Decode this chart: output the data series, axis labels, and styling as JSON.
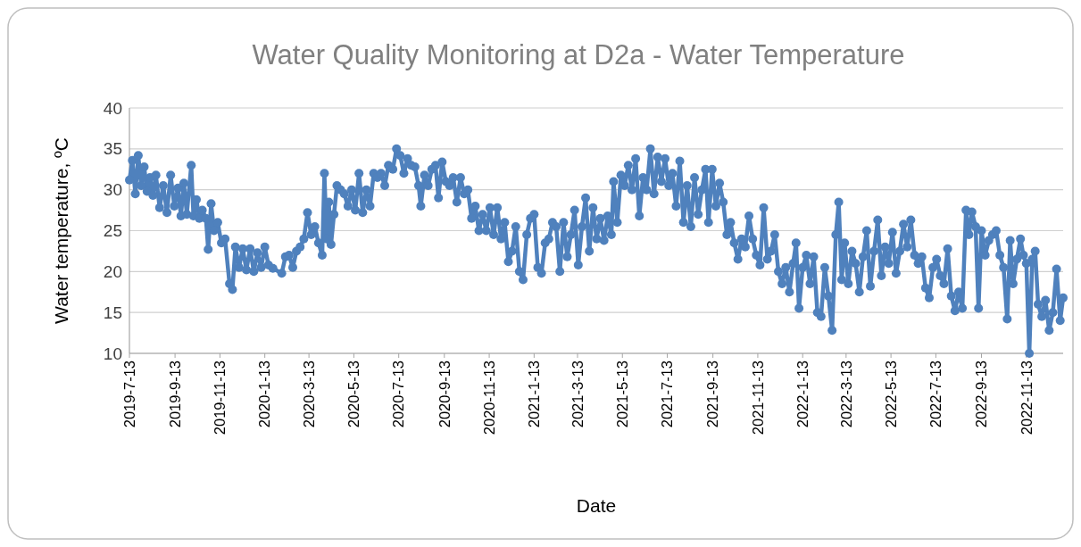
{
  "chart_data": {
    "type": "line",
    "title": "Water Quality Monitoring at D2a - Water Temperature",
    "xlabel": "Date",
    "ylabel": "Water temperature, ºC",
    "x": [
      "2019-07-13",
      "2019-07-17",
      "2019-07-21",
      "2019-07-25",
      "2019-07-29",
      "2019-08-02",
      "2019-08-06",
      "2019-08-10",
      "2019-08-14",
      "2019-08-18",
      "2019-08-23",
      "2019-08-28",
      "2019-09-02",
      "2019-09-07",
      "2019-09-12",
      "2019-09-17",
      "2019-09-21",
      "2019-09-25",
      "2019-09-29",
      "2019-10-05",
      "2019-10-08",
      "2019-10-12",
      "2019-10-16",
      "2019-10-20",
      "2019-10-25",
      "2019-10-28",
      "2019-11-01",
      "2019-11-05",
      "2019-11-10",
      "2019-11-15",
      "2019-11-20",
      "2019-11-26",
      "2019-11-30",
      "2019-12-04",
      "2019-12-09",
      "2019-12-14",
      "2019-12-19",
      "2019-12-24",
      "2019-12-29",
      "2020-01-03",
      "2020-01-08",
      "2020-01-13",
      "2020-01-18",
      "2020-01-24",
      "2020-02-05",
      "2020-02-10",
      "2020-02-15",
      "2020-02-20",
      "2020-02-25",
      "2020-03-01",
      "2020-03-06",
      "2020-03-11",
      "2020-03-16",
      "2020-03-21",
      "2020-03-26",
      "2020-03-31",
      "2020-04-03",
      "2020-04-06",
      "2020-04-09",
      "2020-04-12",
      "2020-04-16",
      "2020-04-20",
      "2020-04-25",
      "2020-04-30",
      "2020-05-05",
      "2020-05-10",
      "2020-05-15",
      "2020-05-20",
      "2020-05-25",
      "2020-05-30",
      "2020-06-04",
      "2020-06-09",
      "2020-06-14",
      "2020-06-19",
      "2020-06-24",
      "2020-06-29",
      "2020-07-05",
      "2020-07-10",
      "2020-07-15",
      "2020-07-20",
      "2020-07-25",
      "2020-07-30",
      "2020-08-04",
      "2020-08-09",
      "2020-08-12",
      "2020-08-17",
      "2020-08-22",
      "2020-08-27",
      "2020-09-01",
      "2020-09-05",
      "2020-09-10",
      "2020-09-15",
      "2020-09-20",
      "2020-09-25",
      "2020-09-30",
      "2020-10-05",
      "2020-10-10",
      "2020-10-15",
      "2020-10-20",
      "2020-10-25",
      "2020-10-30",
      "2020-11-04",
      "2020-11-09",
      "2020-11-14",
      "2020-11-19",
      "2020-11-24",
      "2020-11-29",
      "2020-12-04",
      "2020-12-09",
      "2020-12-14",
      "2020-12-19",
      "2020-12-24",
      "2020-12-29",
      "2021-01-03",
      "2021-01-08",
      "2021-01-13",
      "2021-01-18",
      "2021-01-23",
      "2021-01-28",
      "2021-02-02",
      "2021-02-07",
      "2021-02-12",
      "2021-02-17",
      "2021-02-22",
      "2021-02-27",
      "2021-03-04",
      "2021-03-09",
      "2021-03-14",
      "2021-03-19",
      "2021-03-24",
      "2021-03-29",
      "2021-04-03",
      "2021-04-08",
      "2021-04-13",
      "2021-04-18",
      "2021-04-23",
      "2021-04-28",
      "2021-05-01",
      "2021-05-06",
      "2021-05-11",
      "2021-05-16",
      "2021-05-21",
      "2021-05-26",
      "2021-05-31",
      "2021-06-05",
      "2021-06-10",
      "2021-06-15",
      "2021-06-20",
      "2021-06-25",
      "2021-06-30",
      "2021-07-05",
      "2021-07-10",
      "2021-07-15",
      "2021-07-20",
      "2021-07-25",
      "2021-07-30",
      "2021-08-04",
      "2021-08-09",
      "2021-08-14",
      "2021-08-19",
      "2021-08-24",
      "2021-08-29",
      "2021-09-03",
      "2021-09-07",
      "2021-09-12",
      "2021-09-17",
      "2021-09-22",
      "2021-09-27",
      "2021-10-02",
      "2021-10-07",
      "2021-10-12",
      "2021-10-17",
      "2021-10-22",
      "2021-10-27",
      "2021-11-01",
      "2021-11-06",
      "2021-11-11",
      "2021-11-16",
      "2021-11-21",
      "2021-11-26",
      "2021-12-01",
      "2021-12-06",
      "2021-12-11",
      "2021-12-16",
      "2021-12-21",
      "2021-12-26",
      "2021-12-31",
      "2022-01-04",
      "2022-01-08",
      "2022-01-13",
      "2022-01-18",
      "2022-01-23",
      "2022-01-28",
      "2022-02-02",
      "2022-02-07",
      "2022-02-12",
      "2022-02-17",
      "2022-02-22",
      "2022-02-27",
      "2022-03-03",
      "2022-03-07",
      "2022-03-11",
      "2022-03-16",
      "2022-03-21",
      "2022-03-26",
      "2022-03-31",
      "2022-04-05",
      "2022-04-10",
      "2022-04-15",
      "2022-04-20",
      "2022-04-25",
      "2022-04-30",
      "2022-05-05",
      "2022-05-10",
      "2022-05-15",
      "2022-05-20",
      "2022-05-25",
      "2022-05-30",
      "2022-06-04",
      "2022-06-09",
      "2022-06-14",
      "2022-06-19",
      "2022-06-24",
      "2022-06-29",
      "2022-07-04",
      "2022-07-09",
      "2022-07-14",
      "2022-07-19",
      "2022-07-24",
      "2022-07-29",
      "2022-08-03",
      "2022-08-08",
      "2022-08-13",
      "2022-08-18",
      "2022-08-23",
      "2022-08-27",
      "2022-08-31",
      "2022-09-05",
      "2022-09-09",
      "2022-09-13",
      "2022-09-18",
      "2022-09-23",
      "2022-09-28",
      "2022-10-03",
      "2022-10-08",
      "2022-10-13",
      "2022-10-18",
      "2022-10-22",
      "2022-10-26",
      "2022-10-31",
      "2022-11-05",
      "2022-11-09",
      "2022-11-13",
      "2022-11-17",
      "2022-11-21",
      "2022-11-25",
      "2022-11-29",
      "2022-12-04",
      "2022-12-09",
      "2022-12-14",
      "2022-12-19",
      "2022-12-24",
      "2022-12-29",
      "2023-01-02"
    ],
    "series": [
      {
        "color": "#4f81bd",
        "values": [
          31.2,
          33.6,
          29.5,
          34.2,
          30.5,
          32.8,
          29.8,
          31.5,
          29.3,
          31.8,
          27.8,
          30.5,
          27.2,
          31.8,
          28.0,
          30.2,
          26.8,
          30.8,
          27.0,
          33.0,
          26.8,
          28.8,
          26.5,
          27.5,
          26.5,
          22.7,
          28.3,
          25.0,
          26.0,
          23.5,
          24.0,
          18.5,
          17.8,
          23.0,
          20.5,
          22.8,
          20.2,
          22.8,
          20.0,
          22.3,
          20.5,
          23.0,
          20.8,
          20.4,
          19.8,
          21.8,
          22.0,
          20.5,
          22.5,
          23.0,
          24.0,
          27.2,
          24.5,
          25.5,
          23.5,
          22.0,
          32.0,
          24.0,
          28.5,
          23.3,
          27.0,
          30.5,
          30.0,
          29.5,
          28.0,
          30.0,
          27.5,
          32.0,
          27.2,
          30.0,
          28.0,
          32.0,
          31.5,
          32.0,
          30.5,
          33.0,
          32.5,
          35.0,
          34.2,
          32.0,
          33.8,
          33.0,
          32.8,
          30.5,
          28.0,
          31.8,
          30.5,
          32.5,
          33.0,
          29.0,
          33.4,
          31.0,
          30.5,
          31.5,
          28.5,
          31.5,
          29.5,
          30.0,
          26.5,
          28.0,
          25.0,
          27.0,
          25.0,
          27.8,
          24.5,
          27.8,
          24.0,
          26.0,
          21.2,
          22.5,
          25.5,
          20.0,
          19.0,
          24.5,
          26.5,
          27.0,
          20.5,
          19.8,
          23.5,
          24.0,
          26.0,
          25.5,
          20.0,
          26.0,
          21.8,
          24.5,
          27.5,
          20.8,
          25.5,
          29.0,
          22.5,
          27.8,
          24.0,
          26.5,
          23.8,
          26.8,
          24.5,
          31.0,
          26.0,
          31.8,
          30.5,
          33.0,
          30.0,
          33.8,
          26.8,
          31.5,
          30.0,
          35.0,
          29.5,
          34.0,
          31.0,
          33.8,
          30.5,
          32.0,
          28.0,
          33.5,
          26.0,
          30.5,
          25.5,
          31.5,
          27.0,
          30.0,
          32.5,
          26.0,
          32.5,
          28.0,
          30.8,
          28.5,
          24.5,
          26.0,
          23.5,
          21.5,
          24.0,
          23.0,
          26.8,
          24.0,
          22.0,
          20.8,
          27.8,
          21.5,
          22.5,
          24.5,
          20.0,
          18.5,
          20.5,
          17.5,
          21.0,
          23.5,
          15.5,
          20.5,
          22.0,
          18.5,
          21.8,
          15.0,
          14.5,
          20.5,
          17.0,
          12.8,
          24.5,
          28.5,
          19.0,
          23.5,
          18.5,
          22.5,
          21.0,
          17.5,
          21.8,
          25.0,
          18.2,
          22.5,
          26.3,
          19.5,
          23.0,
          21.0,
          24.8,
          19.8,
          22.5,
          25.8,
          23.0,
          26.3,
          22.0,
          21.0,
          21.8,
          18.0,
          16.8,
          20.5,
          21.5,
          19.5,
          18.5,
          22.8,
          17.0,
          15.2,
          17.5,
          15.5,
          27.5,
          24.5,
          27.3,
          25.5,
          15.5,
          25.0,
          22.0,
          23.8,
          24.5,
          25.0,
          22.0,
          20.5,
          14.2,
          23.8,
          18.5,
          21.5,
          24.0,
          22.0,
          21.0,
          10.0,
          21.5,
          22.5,
          16.0,
          14.5,
          16.5,
          12.8,
          15.0,
          20.3,
          14.0,
          16.8
        ]
      }
    ],
    "xlim": [
      "2019-07-13",
      "2023-01-02"
    ],
    "xticks": [
      {
        "value": "2019-07-13",
        "label": "2019-7-13"
      },
      {
        "value": "2019-09-13",
        "label": "2019-9-13"
      },
      {
        "value": "2019-11-13",
        "label": "2019-11-13"
      },
      {
        "value": "2020-01-13",
        "label": "2020-1-13"
      },
      {
        "value": "2020-03-13",
        "label": "2020-3-13"
      },
      {
        "value": "2020-05-13",
        "label": "2020-5-13"
      },
      {
        "value": "2020-07-13",
        "label": "2020-7-13"
      },
      {
        "value": "2020-09-13",
        "label": "2020-9-13"
      },
      {
        "value": "2020-11-13",
        "label": "2020-11-13"
      },
      {
        "value": "2021-01-13",
        "label": "2021-1-13"
      },
      {
        "value": "2021-03-13",
        "label": "2021-3-13"
      },
      {
        "value": "2021-05-13",
        "label": "2021-5-13"
      },
      {
        "value": "2021-07-13",
        "label": "2021-7-13"
      },
      {
        "value": "2021-09-13",
        "label": "2021-9-13"
      },
      {
        "value": "2021-11-13",
        "label": "2021-11-13"
      },
      {
        "value": "2022-01-13",
        "label": "2022-1-13"
      },
      {
        "value": "2022-03-13",
        "label": "2022-3-13"
      },
      {
        "value": "2022-05-13",
        "label": "2022-5-13"
      },
      {
        "value": "2022-07-13",
        "label": "2022-7-13"
      },
      {
        "value": "2022-09-13",
        "label": "2022-9-13"
      },
      {
        "value": "2022-11-13",
        "label": "2022-11-13"
      }
    ],
    "ylim": [
      10,
      40
    ],
    "yticks": [
      10,
      15,
      20,
      25,
      30,
      35,
      40
    ],
    "grid": "y",
    "marker": "circle",
    "line_style": "solid"
  }
}
